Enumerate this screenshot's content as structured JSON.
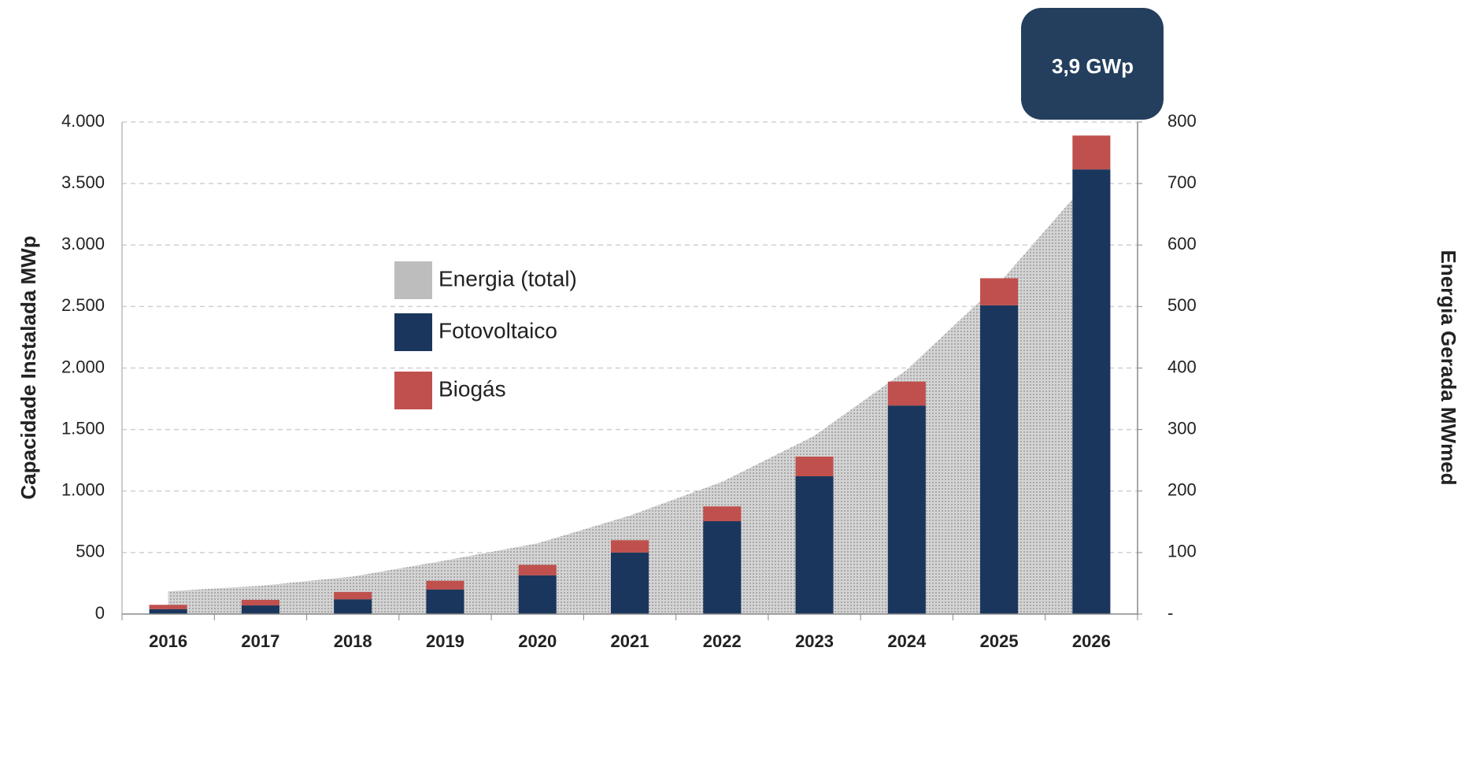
{
  "chart_data": {
    "type": "bar",
    "stacked": true,
    "categories": [
      "2016",
      "2017",
      "2018",
      "2019",
      "2020",
      "2021",
      "2022",
      "2023",
      "2024",
      "2025",
      "2026"
    ],
    "series": [
      {
        "name": "Energia (total)",
        "type": "area",
        "axis": "y2",
        "color": "#bdbdbd",
        "values": [
          37,
          46,
          61,
          87,
          115,
          160,
          215,
          290,
          397,
          538,
          710
        ]
      },
      {
        "name": "Fotovoltaico",
        "type": "bar",
        "color": "#1b365d",
        "values": [
          40,
          70,
          120,
          200,
          315,
          500,
          755,
          1120,
          1695,
          2510,
          3615
        ]
      },
      {
        "name": "Biogás",
        "type": "bar",
        "color": "#c0504d",
        "values": [
          35,
          45,
          60,
          70,
          85,
          100,
          120,
          160,
          195,
          220,
          275
        ]
      }
    ],
    "ylabel": "Capacidade Instalada MWp",
    "y2label": "Energia Gerada MWmed",
    "ylim": [
      0,
      4000
    ],
    "yticks": [
      0,
      500,
      {
        "value": 1000,
        "label": "1.000"
      },
      {
        "value": 1500,
        "label": "1.500"
      },
      {
        "value": 2000,
        "label": "2.000"
      },
      {
        "value": 2500,
        "label": "2.500"
      },
      {
        "value": 3000,
        "label": "3.000"
      },
      {
        "value": 3500,
        "label": "3.500"
      },
      {
        "value": 4000,
        "label": "4.000"
      }
    ],
    "y2lim": [
      0,
      800
    ],
    "y2ticks": [
      {
        "value": 0,
        "label": "-"
      },
      100,
      200,
      300,
      400,
      500,
      600,
      700,
      800
    ],
    "grid": true,
    "annotation": "3,9 GWp"
  }
}
